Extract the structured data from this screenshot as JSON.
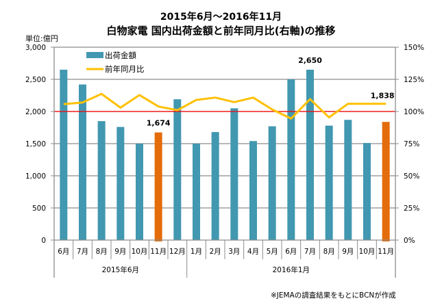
{
  "chart_data": {
    "type": "bar",
    "title": "2015年6月～2016年11月",
    "subtitle": "白物家電 国内出荷金額と前年同月比(右軸)の推移",
    "unit_label": "単位:億円",
    "source_note": "※JEMAの調査結果をもとにBCNが作成",
    "categories": [
      "6月",
      "7月",
      "8月",
      "9月",
      "10月",
      "11月",
      "12月",
      "1月",
      "2月",
      "3月",
      "4月",
      "5月",
      "6月",
      "7月",
      "8月",
      "9月",
      "10月",
      "11月"
    ],
    "groups": [
      {
        "label": "2015年6月",
        "count": 7
      },
      {
        "label": "2016年1月",
        "count": 11
      }
    ],
    "series": [
      {
        "name": "出荷金額",
        "type": "bar",
        "axis": "left",
        "values": [
          2650,
          2420,
          1850,
          1760,
          1500,
          1674,
          2190,
          1500,
          1680,
          2050,
          1540,
          1770,
          2500,
          2650,
          1780,
          1870,
          1510,
          1838
        ],
        "highlight_indices": [
          5,
          17
        ]
      },
      {
        "name": "前年同月比",
        "type": "line",
        "axis": "right",
        "values": [
          105.7,
          107,
          113.7,
          103,
          112.8,
          103.9,
          101,
          109,
          110.8,
          107.3,
          110.8,
          101.6,
          94.5,
          109.6,
          95.4,
          106,
          106,
          106
        ]
      }
    ],
    "data_labels": [
      {
        "index": 5,
        "text": "1,674"
      },
      {
        "index": 13,
        "text": "2,650"
      },
      {
        "index": 17,
        "text": "1,838"
      }
    ],
    "left_axis": {
      "ylim": [
        0,
        3000
      ],
      "ticks": [
        "0",
        "500",
        "1,000",
        "1,500",
        "2,000",
        "2,500",
        "3,000"
      ]
    },
    "right_axis": {
      "ylim": [
        0,
        150
      ],
      "ticks": [
        "0%",
        "25%",
        "50%",
        "75%",
        "100%",
        "125%",
        "150%"
      ]
    },
    "reference_line": {
      "axis": "right",
      "value": 100
    },
    "grid": true,
    "legend": {
      "position": "top-left",
      "entries": [
        "出荷金額",
        "前年同月比"
      ]
    },
    "colors": {
      "bar": "#4198b0",
      "bar_highlight": "#e46c0a",
      "line": "#ffc000",
      "reference": "#ff0000",
      "grid": "#8c8c8c"
    }
  }
}
